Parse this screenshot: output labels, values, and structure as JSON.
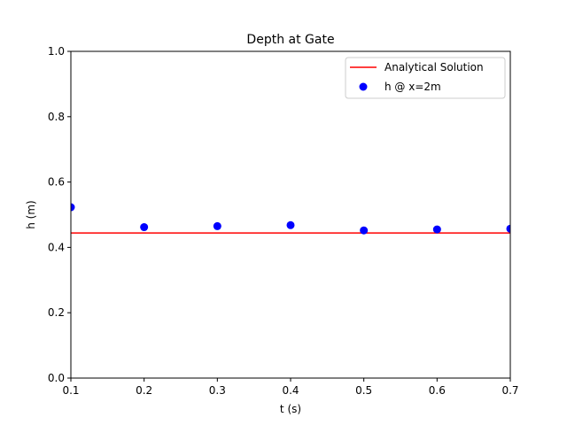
{
  "chart_data": {
    "type": "scatter",
    "title": "Depth at Gate",
    "xlabel": "t (s)",
    "ylabel": "h (m)",
    "xlim": [
      0.1,
      0.7
    ],
    "ylim": [
      0.0,
      1.0
    ],
    "xticks": [
      "0.1",
      "0.2",
      "0.3",
      "0.4",
      "0.5",
      "0.6",
      "0.7"
    ],
    "yticks": [
      "0.0",
      "0.2",
      "0.4",
      "0.6",
      "0.8",
      "1.0"
    ],
    "grid": false,
    "legend_position": "top-right",
    "series": [
      {
        "name": "Analytical Solution",
        "kind": "line",
        "color": "#ff0000",
        "x": [
          0.1,
          0.7
        ],
        "y": [
          0.444,
          0.444
        ]
      },
      {
        "name": "h @ x=2m",
        "kind": "scatter",
        "color": "#0000ff",
        "x": [
          0.1,
          0.2,
          0.3,
          0.4,
          0.5,
          0.6,
          0.7
        ],
        "y": [
          0.523,
          0.462,
          0.465,
          0.468,
          0.452,
          0.455,
          0.457
        ]
      }
    ]
  }
}
